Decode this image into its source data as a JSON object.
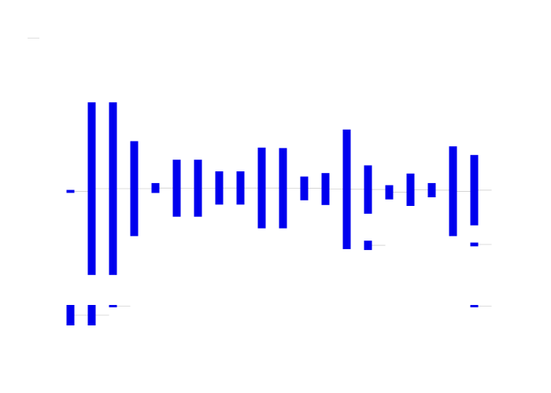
{
  "chart_data": {
    "type": "bar",
    "subtype": "waterfall",
    "title": "",
    "xlabel": "",
    "ylabel": "",
    "axes_visible": false,
    "grid": false,
    "legend": "top-left",
    "bar_color": "#0000ee",
    "connector_color": "#bbbbbb",
    "panels": [
      {
        "name": "",
        "ylim": [
          -2.55,
          2.55
        ],
        "bars": [
          {
            "low": -0.1,
            "high": -0.03
          },
          {
            "low": -2.0,
            "high": 2.0
          },
          {
            "low": -2.0,
            "high": 2.0
          },
          {
            "low": -1.1,
            "high": 1.1
          },
          {
            "low": -0.1,
            "high": 0.13
          },
          {
            "low": -0.65,
            "high": 0.67
          },
          {
            "low": -0.65,
            "high": 0.67
          },
          {
            "low": -0.37,
            "high": 0.4
          },
          {
            "low": -0.37,
            "high": 0.4
          },
          {
            "low": -0.92,
            "high": 0.95
          },
          {
            "low": -0.92,
            "high": 0.94
          },
          {
            "low": -0.27,
            "high": 0.28
          },
          {
            "low": -0.38,
            "high": 0.36
          },
          {
            "low": -1.4,
            "high": 1.37
          },
          {
            "low": -0.58,
            "high": 0.54
          },
          {
            "low": -0.25,
            "high": 0.08
          },
          {
            "low": -0.4,
            "high": 0.35
          },
          {
            "low": -0.2,
            "high": 0.13
          },
          {
            "low": -1.1,
            "high": 0.98
          },
          {
            "low": -0.85,
            "high": 0.78
          }
        ]
      },
      {
        "name": "",
        "ylim": [
          -2.6,
          2.4
        ],
        "bars": [
          {
            "low": -1.3,
            "high": 0.0
          },
          {
            "low": -1.3,
            "high": 0.0
          },
          {
            "low": -0.15,
            "high": 0.0
          },
          null,
          null,
          null,
          null,
          null,
          null,
          null,
          null,
          null,
          null,
          null,
          null,
          null,
          null,
          null,
          null,
          {
            "low": -0.15,
            "high": 0.0
          }
        ]
      },
      {
        "name": "",
        "ylim": [
          -0.9,
          1.2
        ],
        "bars": [
          null,
          null,
          null,
          null,
          null,
          null,
          null,
          null,
          null,
          null,
          null,
          null,
          null,
          null,
          {
            "low": -0.4,
            "high": 0.1
          },
          null,
          null,
          null,
          null,
          {
            "low": -0.2,
            "high": 0.0
          }
        ]
      }
    ]
  }
}
